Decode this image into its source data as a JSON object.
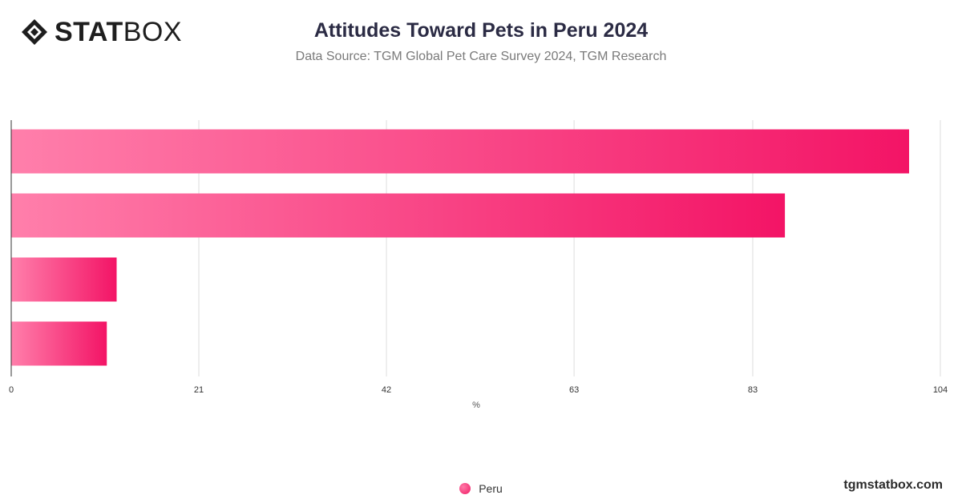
{
  "header": {
    "logo_bold": "STAT",
    "logo_light": "BOX",
    "title": "Attitudes Toward Pets in Peru 2024",
    "subtitle": "Data Source: TGM Global Pet Care Survey 2024, TGM Research"
  },
  "colors": {
    "bar_start": "#ff7fab",
    "bar_end": "#f31466",
    "grid": "#dddddd",
    "axis": "#333333"
  },
  "chart_data": {
    "type": "bar",
    "orientation": "horizontal",
    "categories": [
      "",
      "",
      "",
      ""
    ],
    "series": [
      {
        "name": "Peru",
        "values": [
          100.5,
          86.6,
          11.8,
          10.7
        ]
      }
    ],
    "xlabel": "%",
    "ylabel": "",
    "xlim": [
      0,
      104
    ],
    "ticks": [
      0,
      21,
      42,
      63,
      83,
      104
    ],
    "tick_labels": [
      "0",
      "21",
      "42",
      "63",
      "83",
      "104"
    ],
    "grid": true,
    "legend_position": "bottom"
  },
  "footer": {
    "legend_label": "Peru",
    "site": "tgmstatbox.com"
  }
}
